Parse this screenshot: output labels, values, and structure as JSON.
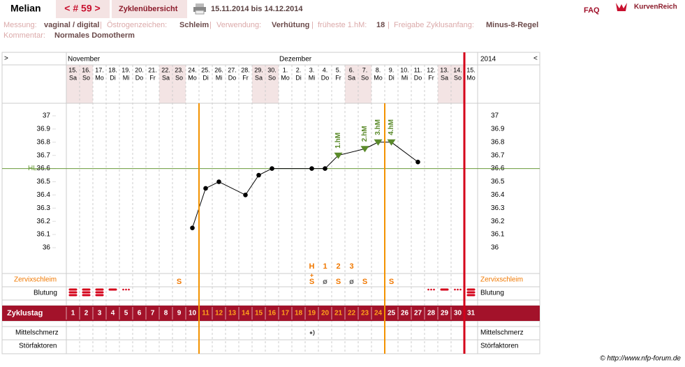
{
  "header": {
    "name": "Melian",
    "cycle_nav": "< # 59 >",
    "overview_tab": "Zyklenübersicht",
    "date_range": "15.11.2014 bis 14.12.2014",
    "faq": "FAQ",
    "logo": "KurvenReich"
  },
  "info": {
    "separator": "|",
    "fields": [
      {
        "label": "Messung:",
        "value": "vaginal / digital"
      },
      {
        "label": "Östrogenzeichen:",
        "value": "Schleim"
      },
      {
        "label": "Verwendung:",
        "value": "Verhütung"
      },
      {
        "label": "früheste 1.hM:",
        "value": "18"
      },
      {
        "label": "Freigabe Zyklusanfang:",
        "value": "Minus-8-Regel"
      }
    ],
    "comment": {
      "label": "Kommentar:",
      "value": "Normales Domotherm"
    }
  },
  "calendar": {
    "nav_left": ">",
    "nav_right": "<",
    "months": [
      "November",
      "Dezember"
    ],
    "year": "2014",
    "days": [
      "15.",
      "16.",
      "17.",
      "18.",
      "19.",
      "20.",
      "21.",
      "22.",
      "23.",
      "24.",
      "25.",
      "26.",
      "27.",
      "28.",
      "29.",
      "30.",
      "1.",
      "2.",
      "3.",
      "4.",
      "5.",
      "6.",
      "7.",
      "8.",
      "9.",
      "10.",
      "11.",
      "12.",
      "13.",
      "14.",
      "15."
    ],
    "weekdays": [
      "Sa",
      "So",
      "Mo",
      "Di",
      "Mi",
      "Do",
      "Fr",
      "Sa",
      "So",
      "Mo",
      "Di",
      "Mi",
      "Do",
      "Fr",
      "Sa",
      "So",
      "Mo",
      "Di",
      "Mi",
      "Do",
      "Fr",
      "Sa",
      "So",
      "Mo",
      "Di",
      "Mi",
      "Do",
      "Fr",
      "Sa",
      "So",
      "Mo"
    ]
  },
  "rows": {
    "cervix_label": "Zervixschleim",
    "peak_marks": [
      null,
      null,
      null,
      null,
      null,
      null,
      null,
      null,
      null,
      null,
      null,
      null,
      null,
      null,
      null,
      null,
      null,
      null,
      "H",
      "1",
      "2",
      "3",
      null,
      null,
      null,
      null,
      null,
      null,
      null,
      null,
      null
    ],
    "cervix_extra": [
      null,
      null,
      null,
      null,
      null,
      null,
      null,
      null,
      null,
      null,
      null,
      null,
      null,
      null,
      null,
      null,
      null,
      null,
      "+",
      null,
      null,
      null,
      null,
      null,
      null,
      null,
      null,
      null,
      null,
      null,
      null
    ],
    "cervix": [
      null,
      null,
      null,
      null,
      null,
      null,
      null,
      null,
      "S",
      null,
      null,
      null,
      null,
      null,
      null,
      null,
      null,
      null,
      "S",
      "ø",
      "S",
      "ø",
      "S",
      null,
      "S",
      null,
      null,
      null,
      null,
      null,
      null
    ],
    "bleeding_label": "Blutung",
    "cycle_day_label": "Zyklustag",
    "cycle_days": [
      1,
      2,
      3,
      4,
      5,
      6,
      7,
      8,
      9,
      10,
      11,
      12,
      13,
      14,
      15,
      16,
      17,
      18,
      19,
      20,
      21,
      22,
      23,
      24,
      25,
      26,
      27,
      28,
      29,
      30,
      31
    ],
    "pain_label": "Mittelschmerz",
    "disturbance_label": "Störfaktoren"
  },
  "footer": "© http://www.nfp-forum.de",
  "chart_data": {
    "type": "line",
    "x": [
      10,
      11,
      12,
      14,
      15,
      16,
      19,
      20,
      21,
      23,
      24,
      25,
      27
    ],
    "values": [
      36.15,
      36.45,
      36.5,
      36.4,
      36.55,
      36.6,
      36.6,
      36.6,
      36.7,
      36.75,
      36.8,
      36.8,
      36.65
    ],
    "color": "#000000",
    "xlim": [
      0.5,
      31.5
    ],
    "ylim": [
      35.8,
      37.1
    ],
    "yticks": [
      36,
      36.1,
      36.2,
      36.3,
      36.4,
      36.5,
      36.6,
      36.7,
      36.8,
      36.9,
      37
    ],
    "reference_line": {
      "label": "HL",
      "value": 36.6,
      "color": "#6a9a3a"
    },
    "annotations": [
      {
        "text": "1.hM",
        "x": 21
      },
      {
        "text": "2.hM",
        "x": 23
      },
      {
        "text": "3.hM",
        "x": 24
      },
      {
        "text": "4.hM",
        "x": 25
      }
    ],
    "annotation_color": "#5a8a2a"
  }
}
